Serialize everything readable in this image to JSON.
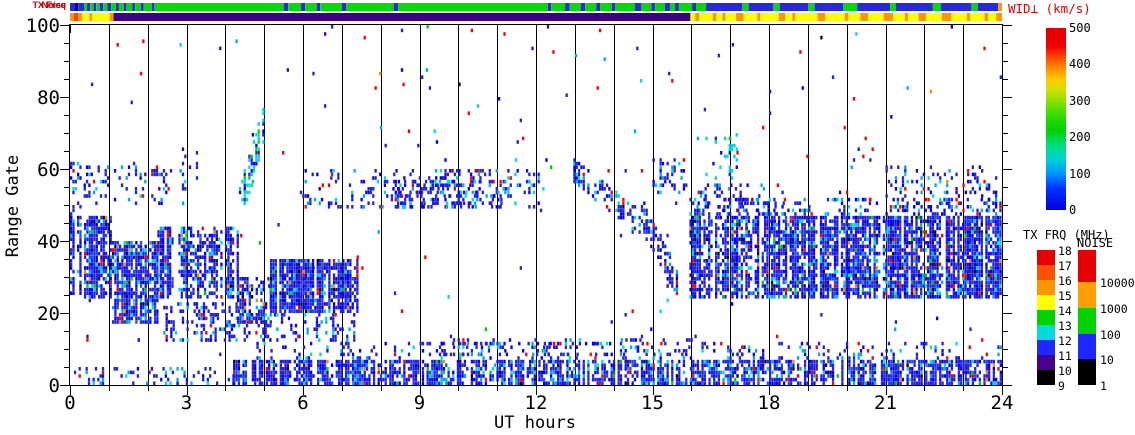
{
  "strips": {
    "noise": {
      "label": "Noise",
      "segments": [
        [
          0,
          0.13,
          "#2828dc"
        ],
        [
          0.13,
          0.22,
          "#000096"
        ],
        [
          0.22,
          0.36,
          "#2828dc"
        ],
        [
          0.36,
          0.44,
          "#00dc00"
        ],
        [
          0.44,
          0.52,
          "#2828dc"
        ],
        [
          0.52,
          0.6,
          "#00dc00"
        ],
        [
          0.6,
          0.68,
          "#2828dc"
        ],
        [
          0.68,
          0.76,
          "#00dc00"
        ],
        [
          0.76,
          0.86,
          "#2828dc"
        ],
        [
          0.86,
          0.96,
          "#00dc00"
        ],
        [
          0.96,
          1.06,
          "#2828dc"
        ],
        [
          1.06,
          1.18,
          "#00dc00"
        ],
        [
          1.18,
          1.26,
          "#2828dc"
        ],
        [
          1.26,
          1.38,
          "#00dc00"
        ],
        [
          1.38,
          1.46,
          "#2828dc"
        ],
        [
          1.46,
          1.6,
          "#00dc00"
        ],
        [
          1.6,
          1.68,
          "#2828dc"
        ],
        [
          1.68,
          1.82,
          "#00dc00"
        ],
        [
          1.82,
          1.9,
          "#2828dc"
        ],
        [
          1.9,
          2.1,
          "#00dc00"
        ],
        [
          2.1,
          2.18,
          "#2828dc"
        ],
        [
          2.18,
          5.5,
          "#00dc00"
        ],
        [
          5.5,
          5.62,
          "#2828dc"
        ],
        [
          5.62,
          5.95,
          "#00dc00"
        ],
        [
          5.95,
          6.06,
          "#2828dc"
        ],
        [
          6.06,
          6.35,
          "#00dc00"
        ],
        [
          6.35,
          6.45,
          "#2828dc"
        ],
        [
          6.45,
          7.0,
          "#00dc00"
        ],
        [
          7.0,
          7.12,
          "#2828dc"
        ],
        [
          7.12,
          8.33,
          "#00dc00"
        ],
        [
          8.33,
          8.45,
          "#2828dc"
        ],
        [
          8.45,
          12.3,
          "#00dc00"
        ],
        [
          12.3,
          12.4,
          "#2828dc"
        ],
        [
          12.4,
          12.75,
          "#00dc00"
        ],
        [
          12.75,
          12.87,
          "#2828dc"
        ],
        [
          12.87,
          13.15,
          "#00dc00"
        ],
        [
          13.15,
          13.27,
          "#2828dc"
        ],
        [
          13.27,
          13.55,
          "#00dc00"
        ],
        [
          13.55,
          13.65,
          "#2828dc"
        ],
        [
          13.65,
          13.95,
          "#00dc00"
        ],
        [
          13.95,
          14.05,
          "#2828dc"
        ],
        [
          14.05,
          14.55,
          "#00dc00"
        ],
        [
          14.55,
          14.72,
          "#2828dc"
        ],
        [
          14.72,
          14.97,
          "#00dc00"
        ],
        [
          14.97,
          15.07,
          "#2828dc"
        ],
        [
          15.07,
          15.32,
          "#00dc00"
        ],
        [
          15.32,
          15.45,
          "#2828dc"
        ],
        [
          15.45,
          15.58,
          "#00dc00"
        ],
        [
          15.58,
          15.68,
          "#2828dc"
        ],
        [
          15.68,
          16.02,
          "#00dc00"
        ],
        [
          16.02,
          16.12,
          "#2828dc"
        ],
        [
          16.12,
          16.38,
          "#00dc00"
        ],
        [
          16.38,
          17.32,
          "#2828dc"
        ],
        [
          17.32,
          17.47,
          "#00dc00"
        ],
        [
          17.47,
          18.12,
          "#2828dc"
        ],
        [
          18.12,
          18.27,
          "#00dc00"
        ],
        [
          18.27,
          19.02,
          "#2828dc"
        ],
        [
          19.02,
          19.17,
          "#00dc00"
        ],
        [
          19.17,
          19.92,
          "#2828dc"
        ],
        [
          19.92,
          20.27,
          "#00dc00"
        ],
        [
          20.27,
          21.12,
          "#2828dc"
        ],
        [
          21.12,
          21.27,
          "#00dc00"
        ],
        [
          21.27,
          22.22,
          "#2828dc"
        ],
        [
          22.22,
          22.42,
          "#00dc00"
        ],
        [
          22.42,
          23.22,
          "#2828dc"
        ],
        [
          23.22,
          23.37,
          "#00dc00"
        ],
        [
          23.37,
          23.9,
          "#2828dc"
        ],
        [
          23.9,
          24,
          "#ff9600"
        ]
      ]
    },
    "txfreq": {
      "label": "TX Freq",
      "segments": [
        [
          0,
          0.1,
          "#ff9600"
        ],
        [
          0.1,
          0.22,
          "#ff4600"
        ],
        [
          0.22,
          0.32,
          "#ff9600"
        ],
        [
          0.32,
          0.5,
          "#ffff00"
        ],
        [
          0.5,
          0.57,
          "#ff9600"
        ],
        [
          0.57,
          1.02,
          "#ffff00"
        ],
        [
          1.02,
          1.12,
          "#ff9600"
        ],
        [
          1.12,
          15.98,
          "#3c0082"
        ],
        [
          15.98,
          16.1,
          "#ffff00"
        ],
        [
          16.1,
          16.2,
          "#ff9600"
        ],
        [
          16.2,
          16.55,
          "#ffff00"
        ],
        [
          16.55,
          16.65,
          "#ff9600"
        ],
        [
          16.65,
          16.8,
          "#ffff00"
        ],
        [
          16.8,
          16.88,
          "#ff9600"
        ],
        [
          16.88,
          17.15,
          "#ffff00"
        ],
        [
          17.15,
          17.35,
          "#ff9600"
        ],
        [
          17.35,
          17.7,
          "#ffff00"
        ],
        [
          17.7,
          17.78,
          "#ff9600"
        ],
        [
          17.78,
          18.25,
          "#ffff00"
        ],
        [
          18.25,
          18.42,
          "#ff9600"
        ],
        [
          18.42,
          18.6,
          "#ffff00"
        ],
        [
          18.6,
          18.68,
          "#ff9600"
        ],
        [
          18.68,
          19.25,
          "#ffff00"
        ],
        [
          19.25,
          19.45,
          "#ff9600"
        ],
        [
          19.45,
          19.95,
          "#ffff00"
        ],
        [
          19.95,
          20.05,
          "#ff9600"
        ],
        [
          20.05,
          20.35,
          "#ffff00"
        ],
        [
          20.35,
          20.55,
          "#ff9600"
        ],
        [
          20.55,
          20.95,
          "#ffff00"
        ],
        [
          20.95,
          21.2,
          "#ff9600"
        ],
        [
          21.2,
          21.5,
          "#ffff00"
        ],
        [
          21.5,
          21.58,
          "#ff9600"
        ],
        [
          21.58,
          21.85,
          "#ffff00"
        ],
        [
          21.85,
          22.05,
          "#ff9600"
        ],
        [
          22.05,
          22.45,
          "#ffff00"
        ],
        [
          22.45,
          22.7,
          "#ff9600"
        ],
        [
          22.7,
          23.1,
          "#ffff00"
        ],
        [
          23.1,
          23.18,
          "#ff9600"
        ],
        [
          23.18,
          23.55,
          "#ffff00"
        ],
        [
          23.55,
          23.65,
          "#ff9600"
        ],
        [
          23.65,
          23.85,
          "#ffff00"
        ],
        [
          23.85,
          24,
          "#ff9600"
        ]
      ]
    }
  },
  "colorbars": {
    "wid": {
      "title": "WID⊥ (km/s)",
      "title_color": "#e10000",
      "min": 0,
      "max": 500,
      "ticks": [
        0,
        100,
        200,
        300,
        400,
        500
      ],
      "gradient": [
        [
          "#0000e1",
          0
        ],
        [
          "#0032ff",
          0.12
        ],
        [
          "#0096ff",
          0.2
        ],
        [
          "#00d2d2",
          0.28
        ],
        [
          "#00dc78",
          0.36
        ],
        [
          "#00d200",
          0.44
        ],
        [
          "#32dc00",
          0.52
        ],
        [
          "#8ce100",
          0.6
        ],
        [
          "#d2e100",
          0.66
        ],
        [
          "#ffc800",
          0.72
        ],
        [
          "#ff8c00",
          0.78
        ],
        [
          "#ff4600",
          0.84
        ],
        [
          "#f00000",
          0.9
        ],
        [
          "#e10000",
          1
        ]
      ]
    },
    "txfrq": {
      "title": "TX FRQ (MHz)",
      "tick_labels": [
        18,
        17,
        16,
        15,
        14,
        13,
        12,
        11,
        10,
        9
      ],
      "segments_bottom_to_top": [
        "#000000",
        "#46008c",
        "#1e28ff",
        "#00dcdc",
        "#00d200",
        "#ffff00",
        "#ff9600",
        "#ff5000",
        "#e60000"
      ]
    },
    "noise": {
      "title": "NOISE",
      "tick_labels": [
        "10000",
        "1000",
        "100",
        "10",
        "1"
      ],
      "segments_bottom_to_top": [
        "#000000",
        "#1e28ff",
        "#00d200",
        "#ffa000",
        "#e60000"
      ],
      "segment_heights_bottom_to_top": [
        26,
        25,
        26,
        26,
        32
      ]
    }
  },
  "chart_data": {
    "type": "scatter",
    "title": "",
    "xlabel": "UT hours",
    "ylabel": "Range Gate",
    "xlim": [
      0,
      24
    ],
    "ylim": [
      0,
      100
    ],
    "x_major_ticks": [
      0,
      3,
      6,
      9,
      12,
      15,
      18,
      21,
      24
    ],
    "x_minor_every": 1,
    "y_major_ticks": [
      0,
      20,
      40,
      60,
      80,
      100
    ],
    "y_minor_every": 5,
    "gridlines": {
      "vertical_every_hours": 1,
      "color": "#000000"
    },
    "seed": 1234,
    "cell": {
      "w": 2.3,
      "h": 3.6,
      "dt": 0.06
    },
    "palettes": {
      "dense": [
        [
          "#2222d8",
          0.5
        ],
        [
          "#0000ff",
          0.18
        ],
        [
          "#1a50f0",
          0.08
        ],
        [
          "#0000a0",
          0.06
        ],
        [
          "#00aaee",
          0.06
        ],
        [
          "#00dcdc",
          0.05
        ],
        [
          "#4400aa",
          0.02
        ],
        [
          "#ff0000",
          0.02
        ],
        [
          "#00cc00",
          0.015
        ],
        [
          "#000000",
          0.015
        ],
        [
          "#ff8800",
          0.01
        ]
      ],
      "cyan": [
        [
          "#00dcdc",
          0.28
        ],
        [
          "#00c8ff",
          0.2
        ],
        [
          "#00e696",
          0.14
        ],
        [
          "#00d200",
          0.12
        ],
        [
          "#2222d8",
          0.14
        ],
        [
          "#0000ff",
          0.12
        ]
      ],
      "bg": [
        [
          "#ff0000",
          0.3
        ],
        [
          "#2222d8",
          0.28
        ],
        [
          "#0000ff",
          0.12
        ],
        [
          "#00aaee",
          0.08
        ],
        [
          "#00dcdc",
          0.06
        ],
        [
          "#4400aa",
          0.06
        ],
        [
          "#00cc00",
          0.04
        ],
        [
          "#000000",
          0.03
        ],
        [
          "#ff8800",
          0.03
        ]
      ],
      "blue_sparse": [
        [
          "#2222d8",
          0.5
        ],
        [
          "#0000ff",
          0.2
        ],
        [
          "#00aaee",
          0.12
        ],
        [
          "#00dcdc",
          0.1
        ],
        [
          "#ff0000",
          0.05
        ],
        [
          "#4400aa",
          0.03
        ]
      ]
    },
    "features": [
      {
        "name": "background-scatter",
        "t": [
          0,
          24
        ],
        "g": [
          0,
          100
        ],
        "d": 0.005,
        "p": "bg"
      },
      {
        "name": "upper-mid-red-scatter",
        "t": [
          7.6,
          16
        ],
        "g": [
          48,
          100
        ],
        "d": 0.004,
        "p": "bg"
      },
      {
        "name": "band-0-1h",
        "t": [
          0,
          1.08
        ],
        "g": [
          24,
          47
        ],
        "d": 0.72,
        "p": "dense"
      },
      {
        "name": "patch-0h-upper",
        "t": [
          0,
          0.35
        ],
        "g": [
          44,
          62
        ],
        "d": 0.3,
        "p": "blue_sparse"
      },
      {
        "name": "patch-1-2h-upper",
        "t": [
          0.35,
          2.6
        ],
        "g": [
          50,
          61
        ],
        "d": 0.2,
        "p": "blue_sparse"
      },
      {
        "name": "band-1-2h",
        "t": [
          1.08,
          2.25
        ],
        "g": [
          17,
          40
        ],
        "d": 0.68,
        "p": "dense"
      },
      {
        "name": "band-2-4h",
        "t": [
          2.25,
          4.3
        ],
        "g": [
          24,
          44
        ],
        "d": 0.68,
        "p": "dense"
      },
      {
        "name": "band-2-4h-low",
        "t": [
          2.4,
          4.35
        ],
        "g": [
          12,
          23
        ],
        "d": 0.3,
        "p": "blue_sparse"
      },
      {
        "name": "patch-3h-upper",
        "t": [
          2.7,
          3.25
        ],
        "g": [
          54,
          67
        ],
        "d": 0.18,
        "p": "blue_sparse"
      },
      {
        "name": "band-4-5h",
        "t": [
          4.3,
          5.15
        ],
        "g": [
          17,
          30
        ],
        "d": 0.5,
        "p": "dense"
      },
      {
        "name": "band-5-7h",
        "t": [
          5.15,
          7.4
        ],
        "g": [
          20,
          35
        ],
        "d": 0.78,
        "p": "dense"
      },
      {
        "name": "band-4-7h-low",
        "t": [
          4.35,
          7.4
        ],
        "g": [
          12,
          20
        ],
        "d": 0.28,
        "p": "blue_sparse"
      },
      {
        "name": "cyan-streak-4.5h",
        "t": [
          4.35,
          4.95
        ],
        "g": [
          50,
          78
        ],
        "d": 0.5,
        "p": "cyan",
        "line": [
          4.35,
          50,
          4.95,
          72
        ],
        "w": 5
      },
      {
        "name": "band-6-12h-g55",
        "t": [
          5.8,
          12.3
        ],
        "g": [
          49,
          60
        ],
        "d": 0.2,
        "p": "blue_sparse"
      },
      {
        "name": "band-8-11h-g53",
        "t": [
          8.3,
          11.3
        ],
        "g": [
          49,
          57
        ],
        "d": 0.3,
        "p": "blue_sparse"
      },
      {
        "name": "diagonal-13-15h",
        "t": [
          12.9,
          15.0
        ],
        "g": [
          40,
          64
        ],
        "d": 0.4,
        "p": "blue_sparse",
        "line": [
          12.9,
          60,
          15.0,
          42
        ],
        "w": 3
      },
      {
        "name": "diagonal-15h",
        "t": [
          14.7,
          15.7
        ],
        "g": [
          22,
          52
        ],
        "d": 0.5,
        "p": "dense",
        "line": [
          14.7,
          48,
          15.7,
          26
        ],
        "w": 4
      },
      {
        "name": "patch-15h-upper",
        "t": [
          15.0,
          15.85
        ],
        "g": [
          53,
          63
        ],
        "d": 0.22,
        "p": "blue_sparse"
      },
      {
        "name": "band-16-24h",
        "t": [
          15.95,
          24
        ],
        "g": [
          24,
          47
        ],
        "d": 0.78,
        "p": "dense"
      },
      {
        "name": "band-16-24h-fringe",
        "t": [
          15.95,
          24
        ],
        "g": [
          47,
          52
        ],
        "d": 0.22,
        "p": "blue_sparse"
      },
      {
        "name": "patch-16-18h-g50",
        "t": [
          16.1,
          18.4
        ],
        "g": [
          47,
          56
        ],
        "d": 0.25,
        "p": "blue_sparse"
      },
      {
        "name": "patch-21-24h-g53",
        "t": [
          21.0,
          23.85
        ],
        "g": [
          47,
          61
        ],
        "d": 0.2,
        "p": "blue_sparse"
      },
      {
        "name": "cyan-patch-16.5h",
        "t": [
          16.3,
          17.15
        ],
        "g": [
          57,
          70
        ],
        "d": 0.2,
        "p": "cyan"
      },
      {
        "name": "bottom-band",
        "t": [
          4.2,
          24
        ],
        "g": [
          0,
          7
        ],
        "d": 0.72,
        "p": "dense"
      },
      {
        "name": "bottom-band-early",
        "t": [
          0.1,
          4.2
        ],
        "g": [
          0,
          5
        ],
        "d": 0.25,
        "p": "blue_sparse"
      },
      {
        "name": "bottom-fringe",
        "t": [
          4.2,
          24
        ],
        "g": [
          7,
          12
        ],
        "d": 0.15,
        "p": "blue_sparse"
      },
      {
        "name": "bottom-fringe-10-16h",
        "t": [
          9.5,
          16
        ],
        "g": [
          8,
          13
        ],
        "d": 0.22,
        "p": "blue_sparse"
      },
      {
        "name": "mid-right-sparse",
        "t": [
          16,
          24
        ],
        "g": [
          10,
          23
        ],
        "d": 0.006,
        "p": "bg"
      }
    ]
  }
}
